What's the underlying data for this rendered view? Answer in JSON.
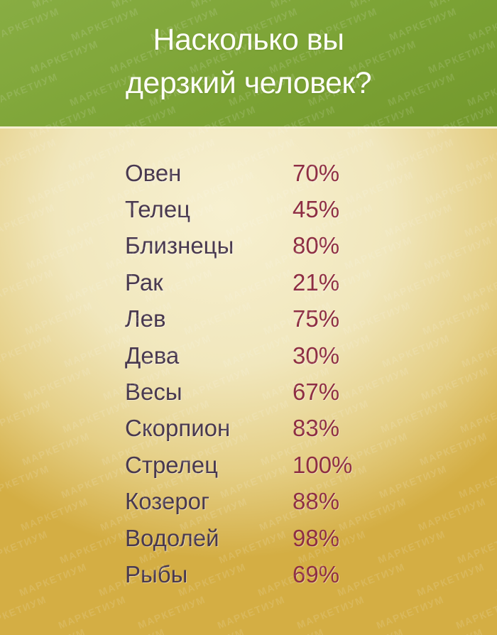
{
  "header": {
    "title_line1": "Насколько вы",
    "title_line2": "дерзкий человек?"
  },
  "watermark": {
    "text": "МАРКЕТИУМ"
  },
  "colors": {
    "header_green": "#7CA335",
    "header_divider_cream": "#F6EFD2",
    "label_purple": "#49394F",
    "percent_maroon": "#8E2E43",
    "bg_center_cream": "#F7F0D0",
    "bg_edge_gold": "#D4AE44",
    "title_white": "#FDFDF6"
  },
  "chart_data": {
    "type": "table",
    "title": "Насколько вы дерзкий человек?",
    "categories": [
      "Овен",
      "Телец",
      "Близнецы",
      "Рак",
      "Лев",
      "Дева",
      "Весы",
      "Скорпион",
      "Стрелец",
      "Козерог",
      "Водолей",
      "Рыбы"
    ],
    "values": [
      70,
      45,
      80,
      21,
      75,
      30,
      67,
      83,
      100,
      88,
      98,
      69
    ],
    "unit": "%"
  }
}
